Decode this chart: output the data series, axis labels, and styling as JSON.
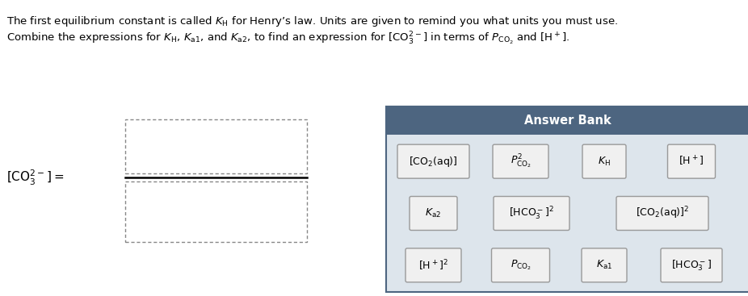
{
  "line1": "The first equilibrium constant is called $K_{\\mathrm{H}}$ for Henry’s law. Units are given to remind you what units you must use.",
  "line2": "Combine the expressions for $K_{\\mathrm{H}}$, $K_{\\mathrm{a1}}$, and $K_{\\mathrm{a2}}$, to find an expression for $[\\mathrm{CO}_3^{2-}]$ in terms of $P_{\\mathrm{CO}_2}$ and $[\\mathrm{H}^+]$.",
  "lhs_label": "$[\\mathrm{CO}_3^{2-}] =$",
  "answer_bank_title": "Answer Bank",
  "answer_bank_header_color": "#4d6580",
  "answer_bank_bg_color": "#dde5ec",
  "answer_bank_border_color": "#4d6580",
  "button_bg": "#f0f0f0",
  "button_border": "#999999",
  "row1": [
    "$[\\mathrm{CO}_2(\\mathrm{aq})]$",
    "$P^2_{\\mathrm{CO}_2}$",
    "$K_{\\mathrm{H}}$",
    "$[\\mathrm{H}^+]$"
  ],
  "row2": [
    "$K_{\\mathrm{a2}}$",
    "$[\\mathrm{HCO}_3^-]^2$",
    "$[\\mathrm{CO}_2(\\mathrm{aq})]^2$"
  ],
  "row3": [
    "$[\\mathrm{H}^+]^2$",
    "$P_{\\mathrm{CO}_2}$",
    "$K_{\\mathrm{a1}}$",
    "$[\\mathrm{HCO}_3^-]$"
  ],
  "figsize": [
    9.26,
    3.67
  ],
  "dpi": 100
}
